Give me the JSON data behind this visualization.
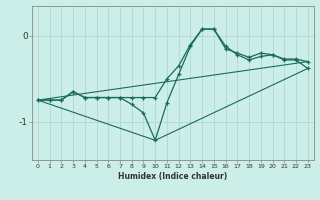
{
  "xlabel": "Humidex (Indice chaleur)",
  "bg_color": "#cceee8",
  "line_color": "#1a6b5a",
  "grid_color": "#aad4cc",
  "xticks": [
    0,
    1,
    2,
    3,
    4,
    5,
    6,
    7,
    8,
    9,
    10,
    11,
    12,
    13,
    14,
    15,
    16,
    17,
    18,
    19,
    20,
    21,
    22,
    23
  ],
  "yticks": [
    0,
    -1
  ],
  "xlim": [
    -0.5,
    23.5
  ],
  "ylim": [
    -1.45,
    0.35
  ],
  "series1_x": [
    0,
    1,
    2,
    3,
    4,
    5,
    6,
    7,
    8,
    9,
    10,
    11,
    12,
    13,
    14,
    15,
    16,
    17,
    18,
    19,
    20,
    21,
    22,
    23
  ],
  "series1_y": [
    -0.75,
    -0.75,
    -0.75,
    -0.65,
    -0.72,
    -0.72,
    -0.72,
    -0.72,
    -0.72,
    -0.72,
    -0.72,
    -0.5,
    -0.35,
    -0.1,
    0.08,
    0.08,
    -0.15,
    -0.2,
    -0.25,
    -0.2,
    -0.22,
    -0.27,
    -0.27,
    -0.3
  ],
  "series2_x": [
    0,
    1,
    2,
    3,
    4,
    5,
    6,
    7,
    8,
    9,
    10,
    11,
    12,
    13,
    14,
    15,
    16,
    17,
    18,
    19,
    20,
    21,
    22,
    23
  ],
  "series2_y": [
    -0.75,
    -0.75,
    -0.75,
    -0.65,
    -0.72,
    -0.72,
    -0.72,
    -0.72,
    -0.8,
    -0.9,
    -1.22,
    -0.78,
    -0.45,
    -0.12,
    0.08,
    0.08,
    -0.12,
    -0.22,
    -0.28,
    -0.24,
    -0.22,
    -0.28,
    -0.28,
    -0.38
  ],
  "series3_x": [
    0,
    23
  ],
  "series3_y": [
    -0.75,
    -0.3
  ],
  "series4_x": [
    0,
    10,
    23
  ],
  "series4_y": [
    -0.75,
    -1.22,
    -0.38
  ]
}
